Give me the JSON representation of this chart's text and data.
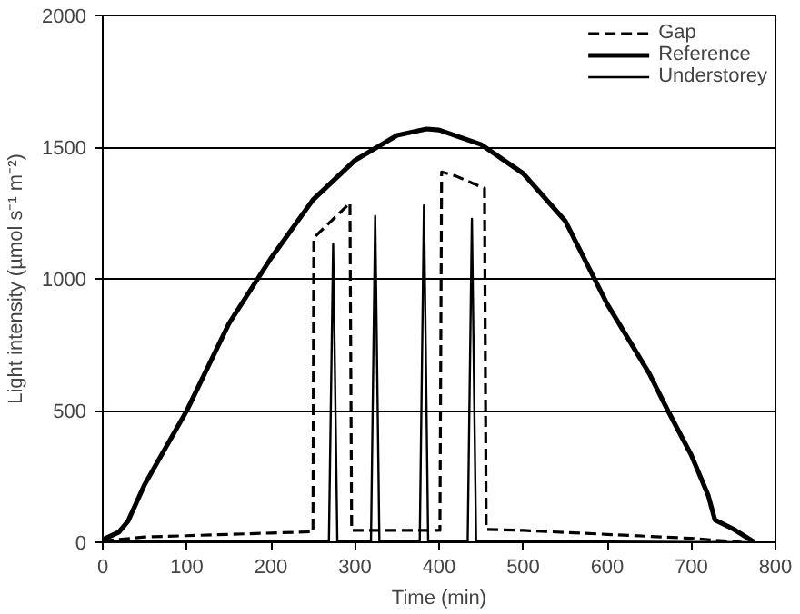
{
  "chart_data": {
    "type": "line",
    "xlabel": "Time (min)",
    "ylabel": "Light intensity (µmol s⁻¹ m⁻²)",
    "xlim": [
      0,
      800
    ],
    "ylim": [
      0,
      2000
    ],
    "xticks": [
      0,
      100,
      200,
      300,
      400,
      500,
      600,
      700,
      800
    ],
    "yticks": [
      0,
      500,
      1000,
      1500,
      2000
    ],
    "grid": "y",
    "legend": "top right",
    "series": [
      {
        "name": "Gap",
        "color": "#000000",
        "line_style": "dashed",
        "x": [
          0,
          50,
          100,
          150,
          200,
          250,
          251,
          294,
          296,
          350,
          401,
          403,
          420,
          454,
          456,
          500,
          600,
          700,
          760
        ],
        "values": [
          5,
          20,
          25,
          30,
          35,
          40,
          1156,
          1288,
          45,
          45,
          45,
          1406,
          1390,
          1344,
          49,
          45,
          30,
          15,
          0
        ]
      },
      {
        "name": "Reference",
        "color": "#000000",
        "line_style": "solid",
        "x": [
          0,
          19,
          30,
          50,
          100,
          150,
          200,
          250,
          300,
          350,
          385,
          400,
          450,
          500,
          550,
          600,
          650,
          672,
          700,
          720,
          728,
          750,
          775
        ],
        "values": [
          10,
          38,
          80,
          220,
          500,
          830,
          1078,
          1300,
          1450,
          1545,
          1569,
          1565,
          1510,
          1400,
          1220,
          904,
          640,
          500,
          330,
          178,
          85,
          50,
          0
        ]
      },
      {
        "name": "Understorey",
        "color": "#000000",
        "line_style": "solid",
        "x": [
          0,
          200,
          269,
          274,
          279,
          319,
          324,
          329,
          377,
          382,
          387,
          434,
          439,
          444,
          600,
          770
        ],
        "values": [
          5,
          5,
          5,
          1132,
          5,
          5,
          1239,
          5,
          5,
          1279,
          5,
          5,
          1228,
          5,
          3,
          0
        ]
      }
    ]
  }
}
